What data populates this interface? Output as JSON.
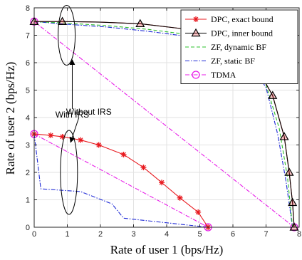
{
  "chart_data": {
    "type": "line",
    "xlabel": "Rate of user 1 (bps/Hz)",
    "ylabel": "Rate of user 2 (bps/Hz)",
    "xlim": [
      0,
      8
    ],
    "ylim": [
      0,
      8
    ],
    "xticks": [
      "0",
      "1",
      "2",
      "3",
      "4",
      "5",
      "6",
      "7",
      "8"
    ],
    "yticks": [
      "0",
      "1",
      "2",
      "3",
      "4",
      "5",
      "6",
      "7",
      "8"
    ],
    "grid": true,
    "legend_position": "top-right",
    "series": [
      {
        "name": "DPC, exact bound",
        "color": "#e8191f",
        "line": "solid",
        "marker": "asterisk",
        "curves": [
          {
            "x": [
              0,
              0.5,
              0.85,
              1.4,
              1.95,
              2.7,
              3.3,
              3.85,
              4.4,
              4.95,
              5.25
            ],
            "y": [
              3.4,
              3.35,
              3.3,
              3.18,
              3.0,
              2.65,
              2.18,
              1.63,
              1.07,
              0.55,
              0
            ],
            "markers": [
              0,
              0.5,
              0.85,
              1.4,
              1.95,
              2.7,
              3.3,
              3.85,
              4.4,
              4.95,
              5.25
            ]
          },
          {
            "x": [
              0,
              0.85,
              2.0,
              3.2,
              4.4,
              5.5,
              6.5,
              7.2,
              7.55,
              7.7,
              7.8,
              7.85
            ],
            "y": [
              7.5,
              7.5,
              7.48,
              7.42,
              7.25,
              6.95,
              6.3,
              4.8,
              3.3,
              2.0,
              0.9,
              0
            ],
            "markers": []
          }
        ]
      },
      {
        "name": "DPC, inner bound",
        "color": "#000000",
        "line": "solid",
        "marker": "triangle",
        "curves": [
          {
            "x": [
              0,
              0.85,
              2.0,
              3.2,
              4.4,
              5.5,
              6.5,
              7.2,
              7.55,
              7.7,
              7.8,
              7.85
            ],
            "y": [
              7.5,
              7.5,
              7.48,
              7.42,
              7.25,
              6.95,
              6.3,
              4.8,
              3.3,
              2.0,
              0.9,
              0
            ],
            "markers": [
              0,
              0.85,
              3.2,
              7.2,
              7.55,
              7.7,
              7.8,
              7.85
            ]
          }
        ]
      },
      {
        "name": "ZF, dynamic BF",
        "color": "#2ec02e",
        "line": "dashed",
        "marker": "none",
        "curves": [
          {
            "x": [
              0,
              1.0,
              2.2,
              3.4,
              4.5,
              5.5,
              6.4,
              7.0,
              7.4,
              7.65,
              7.8
            ],
            "y": [
              7.5,
              7.44,
              7.35,
              7.22,
              7.05,
              6.75,
              6.2,
              5.2,
              3.6,
              1.8,
              0
            ],
            "markers": []
          }
        ]
      },
      {
        "name": "ZF, static BF",
        "color": "#1f2ad6",
        "line": "dashdot",
        "marker": "none",
        "curves": [
          {
            "x": [
              0,
              1.0,
              2.2,
              3.4,
              4.5,
              5.5,
              6.4,
              7.0,
              7.35,
              7.6,
              7.8
            ],
            "y": [
              7.5,
              7.4,
              7.3,
              7.15,
              6.98,
              6.7,
              6.15,
              5.1,
              3.4,
              1.7,
              0
            ],
            "markers": []
          },
          {
            "x": [
              0,
              0.2,
              1.4,
              2.35,
              2.7,
              5.25
            ],
            "y": [
              3.4,
              1.4,
              1.3,
              0.85,
              0.33,
              0
            ],
            "markers": []
          }
        ]
      },
      {
        "name": "TDMA",
        "color": "#e81be8",
        "line": "dashdot",
        "marker": "circle",
        "curves": [
          {
            "x": [
              0,
              7.85
            ],
            "y": [
              7.5,
              0
            ],
            "markers": [
              0,
              7.85
            ]
          },
          {
            "x": [
              0,
              5.25
            ],
            "y": [
              3.4,
              0
            ],
            "markers": [
              0,
              5.25
            ]
          }
        ]
      }
    ],
    "annotations": [
      {
        "text": "With IRS",
        "ellipse_center": [
          0.98,
          7.0
        ],
        "text_at": [
          1.15,
          4.0
        ],
        "arrow_to": [
          1.15,
          6.1
        ]
      },
      {
        "text": "Without IRS",
        "ellipse_center": [
          1.05,
          2.0
        ],
        "text_at": [
          1.65,
          4.1
        ],
        "arrow_to": [
          1.1,
          3.1
        ]
      }
    ]
  }
}
